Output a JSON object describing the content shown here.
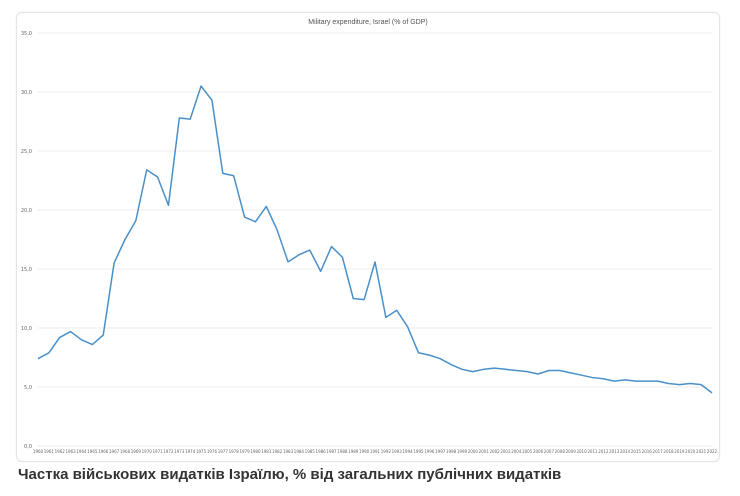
{
  "caption": "Частка військових видатків Ізраїлю, % від загальних публічних видатків",
  "chart_data": {
    "type": "line",
    "title": "Military expenditure, Israel (% of GDP)",
    "xlabel": "",
    "ylabel": "",
    "ylim": [
      0,
      35
    ],
    "yticks": [
      "0,0",
      "5,0",
      "10,0",
      "15,0",
      "20,0",
      "25,0",
      "30,0",
      "35,0"
    ],
    "grid": true,
    "legend": "none",
    "line_color": "#4a90c8",
    "categories": [
      "1960",
      "1961",
      "1962",
      "1963",
      "1964",
      "1965",
      "1966",
      "1967",
      "1968",
      "1969",
      "1970",
      "1971",
      "1972",
      "1973",
      "1974",
      "1975",
      "1976",
      "1977",
      "1978",
      "1979",
      "1980",
      "1981",
      "1982",
      "1983",
      "1984",
      "1985",
      "1986",
      "1987",
      "1988",
      "1989",
      "1990",
      "1991",
      "1992",
      "1993",
      "1994",
      "1995",
      "1996",
      "1997",
      "1998",
      "1999",
      "2000",
      "2001",
      "2002",
      "2003",
      "2004",
      "2005",
      "2006",
      "2007",
      "2008",
      "2009",
      "2010",
      "2011",
      "2012",
      "2013",
      "2014",
      "2015",
      "2016",
      "2017",
      "2018",
      "2019",
      "2020",
      "2021",
      "2022"
    ],
    "values": [
      7.4,
      7.9,
      9.2,
      9.7,
      9.0,
      8.6,
      9.4,
      15.5,
      17.5,
      19.1,
      23.4,
      22.8,
      20.4,
      27.8,
      27.7,
      30.5,
      29.3,
      23.1,
      22.9,
      19.4,
      19.0,
      20.3,
      18.3,
      15.6,
      16.2,
      16.6,
      14.8,
      16.9,
      16.0,
      12.5,
      12.4,
      15.6,
      10.9,
      11.5,
      10.1,
      7.9,
      7.7,
      7.4,
      6.9,
      6.5,
      6.3,
      6.5,
      6.6,
      6.5,
      6.4,
      6.3,
      6.1,
      6.4,
      6.4,
      6.2,
      6.0,
      5.8,
      5.7,
      5.5,
      5.6,
      5.5,
      5.5,
      5.5,
      5.3,
      5.2,
      5.3,
      5.2,
      4.5
    ]
  }
}
